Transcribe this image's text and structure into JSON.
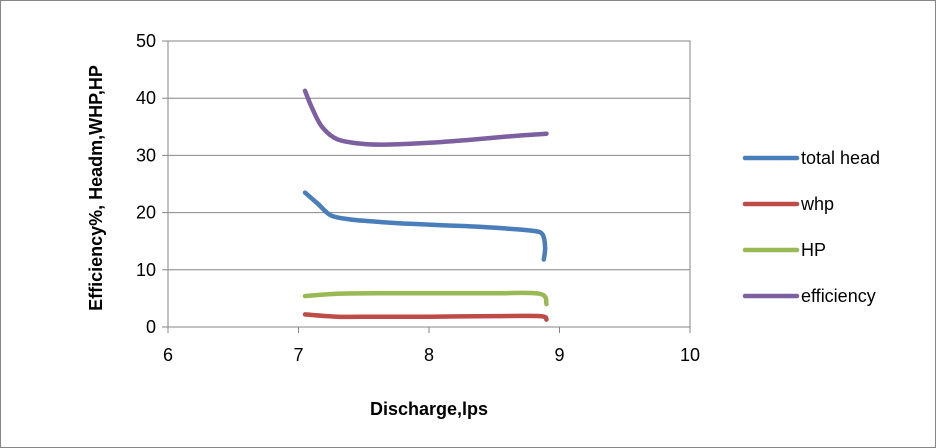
{
  "chart_data": {
    "type": "line",
    "xlabel": "Discharge,lps",
    "ylabel": "Efficiency%, Headm,WHP,HP",
    "xlim": [
      6,
      10
    ],
    "ylim": [
      0,
      50
    ],
    "xticks": [
      6,
      7,
      8,
      9,
      10
    ],
    "yticks": [
      0,
      10,
      20,
      30,
      40,
      50
    ],
    "grid": "horizontal major",
    "legend_position": "right",
    "series": [
      {
        "name": "total head",
        "color": "#4a7ebb",
        "points": [
          [
            7.05,
            23.5
          ],
          [
            7.15,
            21.5
          ],
          [
            7.25,
            19.5
          ],
          [
            7.4,
            18.8
          ],
          [
            7.6,
            18.4
          ],
          [
            7.8,
            18.1
          ],
          [
            8.0,
            17.9
          ],
          [
            8.2,
            17.7
          ],
          [
            8.4,
            17.5
          ],
          [
            8.6,
            17.2
          ],
          [
            8.8,
            16.8
          ],
          [
            8.87,
            16.2
          ],
          [
            8.89,
            14.0
          ],
          [
            8.88,
            11.8
          ]
        ]
      },
      {
        "name": "whp",
        "color": "#be4b48",
        "points": [
          [
            7.05,
            2.2
          ],
          [
            7.3,
            1.8
          ],
          [
            7.6,
            1.8
          ],
          [
            8.0,
            1.8
          ],
          [
            8.5,
            1.9
          ],
          [
            8.85,
            1.9
          ],
          [
            8.9,
            1.3
          ]
        ]
      },
      {
        "name": "HP",
        "color": "#98b954",
        "points": [
          [
            7.05,
            5.4
          ],
          [
            7.3,
            5.8
          ],
          [
            7.6,
            5.9
          ],
          [
            8.0,
            5.9
          ],
          [
            8.5,
            5.9
          ],
          [
            8.85,
            5.8
          ],
          [
            8.9,
            4.0
          ]
        ]
      },
      {
        "name": "efficiency",
        "color": "#7d60a0",
        "points": [
          [
            7.05,
            41.3
          ],
          [
            7.1,
            38.5
          ],
          [
            7.18,
            35.0
          ],
          [
            7.3,
            32.8
          ],
          [
            7.5,
            32.0
          ],
          [
            7.7,
            31.9
          ],
          [
            8.0,
            32.2
          ],
          [
            8.3,
            32.7
          ],
          [
            8.6,
            33.3
          ],
          [
            8.9,
            33.8
          ]
        ]
      }
    ]
  }
}
